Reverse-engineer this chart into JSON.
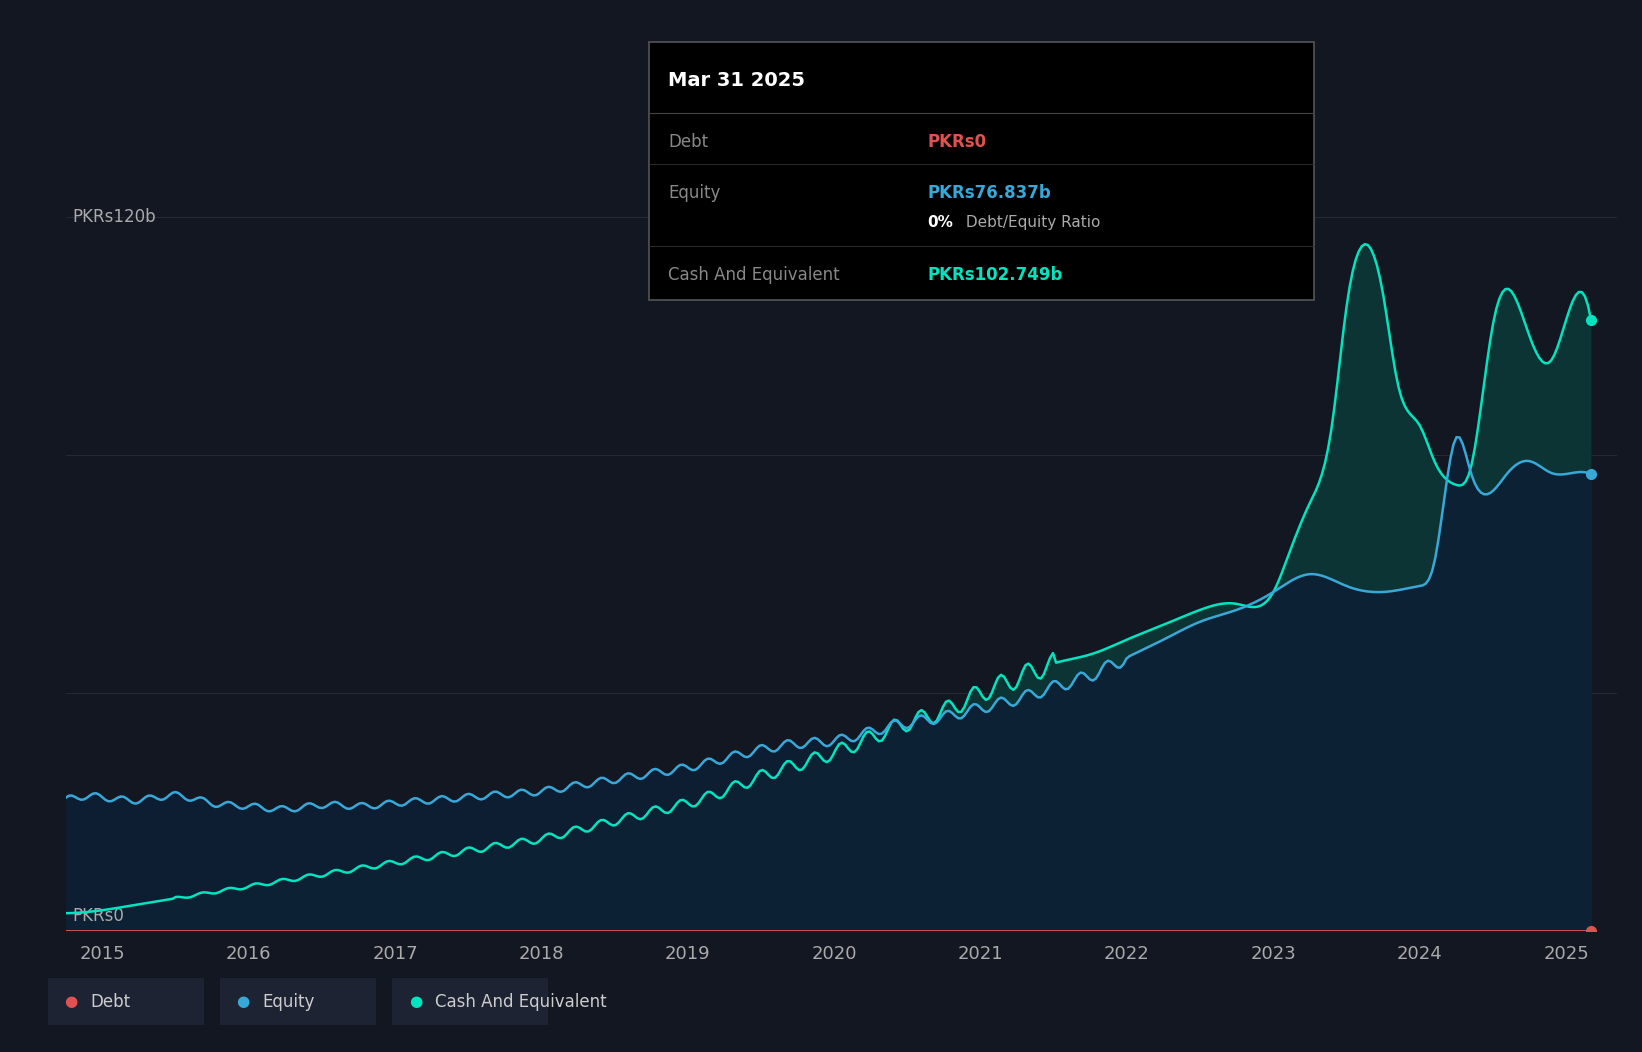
{
  "bg_color": "#131722",
  "grid_color": "#2a2e39",
  "debt_color": "#e05252",
  "equity_color": "#38a8d8",
  "cash_color": "#00e5c0",
  "equity_fill": "#0d2b45",
  "cash_fill_top": "#0a3535",
  "tooltip_bg": "#000000",
  "tooltip_border": "#444444",
  "tooltip_title": "Mar 31 2025",
  "tooltip_debt_label": "Debt",
  "tooltip_debt_value": "PKRs0",
  "tooltip_equity_label": "Equity",
  "tooltip_equity_value": "PKRs76.837b",
  "tooltip_ratio_bold": "0%",
  "tooltip_ratio_normal": " Debt/Equity Ratio",
  "tooltip_cash_label": "Cash And Equivalent",
  "tooltip_cash_value": "PKRs102.749b",
  "legend_items": [
    "Debt",
    "Equity",
    "Cash And Equivalent"
  ],
  "legend_colors": [
    "#e05252",
    "#38a8d8",
    "#00e5c0"
  ],
  "ylabel_120b": "PKRs120b",
  "ylabel_0": "PKRs0",
  "ylim": [
    0,
    130
  ],
  "xlim": [
    2014.75,
    2025.35
  ],
  "xtick_years": [
    2015,
    2016,
    2017,
    2018,
    2019,
    2020,
    2021,
    2022,
    2023,
    2024,
    2025
  ],
  "equity_data": {
    "t": [
      2014.75,
      2015.0,
      2015.25,
      2015.5,
      2015.75,
      2016.0,
      2016.25,
      2016.5,
      2016.75,
      2017.0,
      2017.25,
      2017.5,
      2017.75,
      2018.0,
      2018.25,
      2018.5,
      2018.75,
      2019.0,
      2019.25,
      2019.5,
      2019.75,
      2020.0,
      2020.25,
      2020.5,
      2020.75,
      2021.0,
      2021.25,
      2021.5,
      2021.75,
      2022.0,
      2022.25,
      2022.5,
      2022.75,
      2023.0,
      2023.25,
      2023.5,
      2023.75,
      2024.0,
      2024.1,
      2024.25,
      2024.35,
      2024.5,
      2024.6,
      2024.75,
      2024.9,
      2025.0,
      2025.17
    ],
    "v": [
      22.0,
      22.5,
      22.0,
      22.8,
      21.5,
      21.0,
      20.5,
      21.2,
      21.0,
      21.5,
      22.0,
      22.5,
      23.0,
      23.5,
      24.5,
      25.5,
      26.5,
      27.5,
      29.0,
      30.5,
      31.5,
      32.0,
      33.5,
      35.0,
      36.0,
      37.5,
      39.0,
      41.0,
      43.0,
      46.0,
      49.0,
      52.0,
      54.0,
      57.0,
      60.0,
      58.0,
      57.0,
      58.0,
      62.0,
      83.0,
      77.0,
      74.0,
      77.0,
      79.0,
      77.0,
      76.837,
      76.837
    ]
  },
  "cash_data": {
    "t": [
      2014.75,
      2015.0,
      2015.25,
      2015.5,
      2015.75,
      2016.0,
      2016.25,
      2016.5,
      2016.75,
      2017.0,
      2017.25,
      2017.5,
      2017.75,
      2018.0,
      2018.25,
      2018.5,
      2018.75,
      2019.0,
      2019.25,
      2019.5,
      2019.75,
      2020.0,
      2020.25,
      2020.5,
      2020.75,
      2021.0,
      2021.25,
      2021.5,
      2021.75,
      2022.0,
      2022.25,
      2022.5,
      2022.75,
      2023.0,
      2023.1,
      2023.25,
      2023.4,
      2023.5,
      2023.6,
      2023.75,
      2023.85,
      2024.0,
      2024.1,
      2024.25,
      2024.35,
      2024.5,
      2024.6,
      2024.75,
      2024.9,
      2025.0,
      2025.17
    ],
    "v": [
      3.0,
      3.5,
      4.5,
      5.5,
      6.5,
      7.5,
      8.5,
      9.5,
      10.5,
      11.5,
      12.5,
      13.5,
      14.5,
      15.5,
      17.0,
      18.5,
      20.0,
      21.5,
      23.5,
      26.0,
      28.0,
      30.0,
      32.5,
      35.0,
      37.0,
      40.0,
      42.5,
      45.0,
      46.5,
      49.0,
      51.5,
      54.0,
      55.0,
      57.0,
      63.0,
      72.0,
      85.0,
      105.0,
      115.0,
      107.0,
      92.0,
      85.0,
      79.0,
      75.0,
      78.0,
      102.0,
      108.0,
      100.0,
      96.0,
      102.749,
      102.749
    ]
  }
}
